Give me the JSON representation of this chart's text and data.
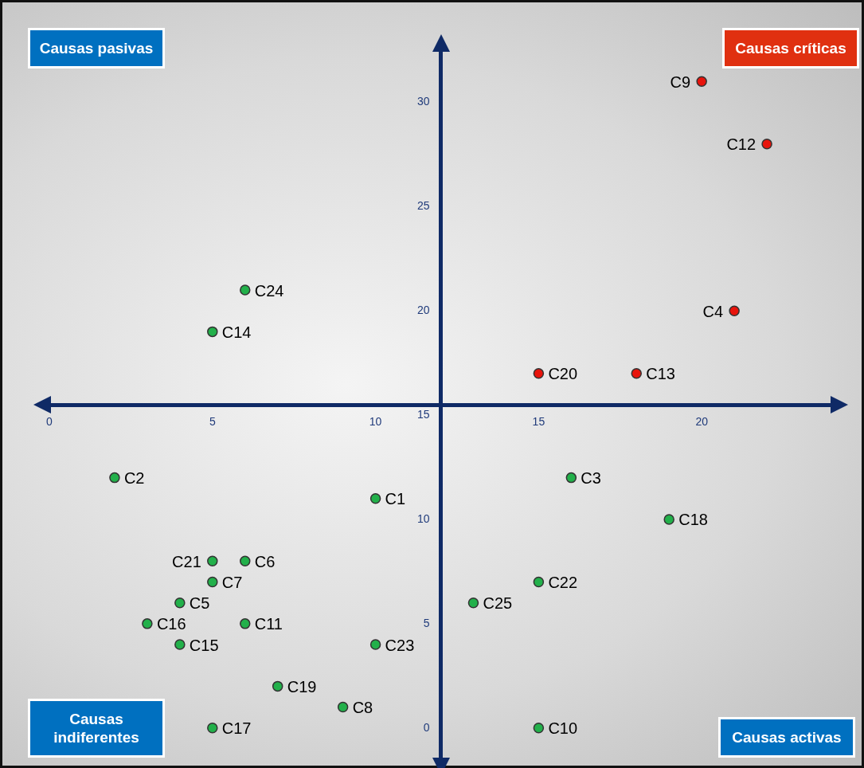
{
  "chart_data": {
    "type": "scatter",
    "marker": "circle",
    "x": [
      20,
      22,
      21,
      15,
      18,
      6,
      5,
      2,
      10,
      16,
      19,
      5,
      6,
      5,
      15,
      4,
      13,
      3,
      6,
      4,
      10,
      7,
      9,
      5,
      15
    ],
    "values": [
      31,
      28,
      20,
      17,
      17,
      21,
      19,
      12,
      11,
      12,
      10,
      8,
      8,
      7,
      7,
      6,
      6,
      5,
      5,
      4,
      4,
      2,
      1,
      0,
      0
    ],
    "colors": [
      "#e8140c",
      "#e8140c",
      "#e8140c",
      "#e8140c",
      "#e8140c",
      "#22b04a",
      "#22b04a",
      "#22b04a",
      "#22b04a",
      "#22b04a",
      "#22b04a",
      "#22b04a",
      "#22b04a",
      "#22b04a",
      "#22b04a",
      "#22b04a",
      "#22b04a",
      "#22b04a",
      "#22b04a",
      "#22b04a",
      "#22b04a",
      "#22b04a",
      "#22b04a",
      "#22b04a",
      "#22b04a"
    ],
    "xlim": [
      0,
      24
    ],
    "ylim": [
      -1.5,
      32.5
    ],
    "xticks": [
      0,
      5,
      10,
      15,
      20
    ],
    "yticks": [
      0,
      5,
      10,
      15,
      20,
      25,
      30
    ],
    "annotations": [
      "Causas pasivas",
      "Causas críticas",
      "Causas indiferentes",
      "Causas activas",
      {
        "text": "C9",
        "x": 20,
        "y": 31
      },
      {
        "text": "C12",
        "x": 22,
        "y": 28
      },
      {
        "text": "C4",
        "x": 21,
        "y": 20
      },
      {
        "text": "C20",
        "x": 15,
        "y": 17
      },
      {
        "text": "C13",
        "x": 18,
        "y": 17
      },
      {
        "text": "C24",
        "x": 6,
        "y": 21
      },
      {
        "text": "C14",
        "x": 5,
        "y": 19
      },
      {
        "text": "C2",
        "x": 2,
        "y": 12
      },
      {
        "text": "C1",
        "x": 10,
        "y": 11
      },
      {
        "text": "C3",
        "x": 16,
        "y": 12
      },
      {
        "text": "C18",
        "x": 19,
        "y": 10
      },
      {
        "text": "C21",
        "x": 5,
        "y": 8
      },
      {
        "text": "C6",
        "x": 6,
        "y": 8
      },
      {
        "text": "C7",
        "x": 5,
        "y": 7
      },
      {
        "text": "C22",
        "x": 15,
        "y": 7
      },
      {
        "text": "C5",
        "x": 4,
        "y": 6
      },
      {
        "text": "C25",
        "x": 13,
        "y": 6
      },
      {
        "text": "C16",
        "x": 3,
        "y": 5
      },
      {
        "text": "C11",
        "x": 6,
        "y": 5
      },
      {
        "text": "C15",
        "x": 4,
        "y": 4
      },
      {
        "text": "C23",
        "x": 10,
        "y": 4
      },
      {
        "text": "C19",
        "x": 7,
        "y": 2
      },
      {
        "text": "C8",
        "x": 9,
        "y": 1
      },
      {
        "text": "C17",
        "x": 5,
        "y": 0
      },
      {
        "text": "C10",
        "x": 15,
        "y": 0
      }
    ]
  }
}
